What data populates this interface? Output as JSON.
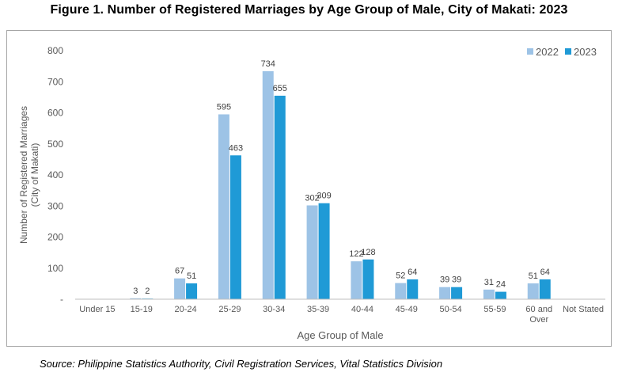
{
  "title": "Figure 1.  Number of Registered Marriages by Age Group of Male, City of Makati: 2023",
  "source": "Source: Philippine Statistics Authority, Civil Registration Services, Vital Statistics Division",
  "colors": {
    "s2022": "#9dc3e6",
    "s2023": "#1f9ad6",
    "axis": "#bfbfbf",
    "text": "#595959"
  },
  "chart_data": {
    "type": "bar",
    "xlabel": "Age Group of Male",
    "ylabel_lines": [
      "Number of Registered Marriages",
      "(City of Makati)"
    ],
    "ylim": [
      0,
      800
    ],
    "yticks": [
      "-",
      "100",
      "200",
      "300",
      "400",
      "500",
      "600",
      "700",
      "800"
    ],
    "categories": [
      [
        "Under 15"
      ],
      [
        "15-19"
      ],
      [
        "20-24"
      ],
      [
        "25-29"
      ],
      [
        "30-34"
      ],
      [
        "35-39"
      ],
      [
        "40-44"
      ],
      [
        "45-49"
      ],
      [
        "50-54"
      ],
      [
        "55-59"
      ],
      [
        "60 and",
        "Over"
      ],
      [
        "Not Stated"
      ]
    ],
    "series": [
      {
        "name": "2022",
        "values": [
          null,
          3,
          67,
          595,
          734,
          302,
          122,
          52,
          39,
          31,
          51,
          null
        ]
      },
      {
        "name": "2023",
        "values": [
          null,
          2,
          51,
          463,
          655,
          309,
          128,
          64,
          39,
          24,
          64,
          null
        ]
      }
    ],
    "legend": "top-right",
    "grid": false
  }
}
